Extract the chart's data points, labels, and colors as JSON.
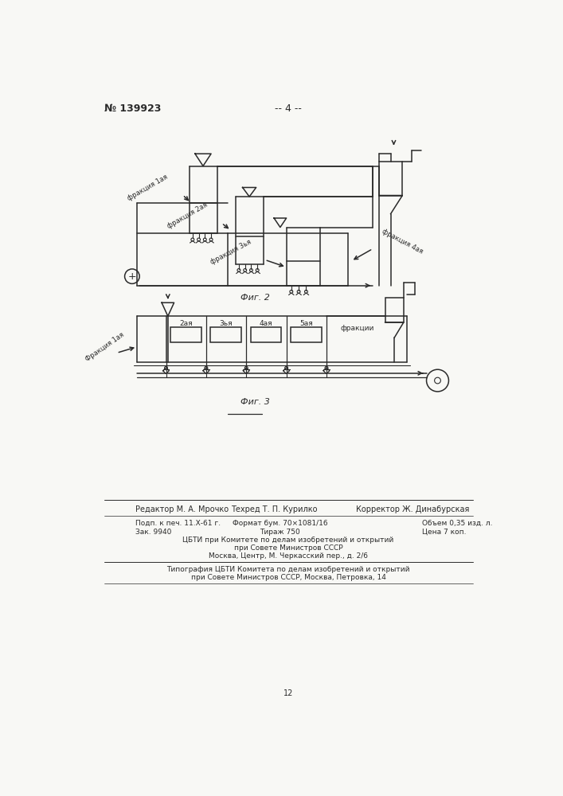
{
  "bg_color": "#f8f8f5",
  "line_color": "#2a2a2a",
  "patent_number": "№ 139923",
  "page_number": "-- 4 --",
  "fig2_label": "Фиг. 2",
  "fig3_label": "Фиг. 3",
  "frac1_label": "фракция 1ая",
  "frac2_label": "фракция 2ая",
  "frac3_label": "фракция 3ья",
  "frac4_label": "фракция 4ая",
  "frac1b_label": "Фракция 1ая",
  "fractions_label": "фракции",
  "labels_2ay": "2ая",
  "labels_3ay": "3ья",
  "labels_4ay": "4ая",
  "labels_5ay": "5ая",
  "page_num_bottom": "12"
}
